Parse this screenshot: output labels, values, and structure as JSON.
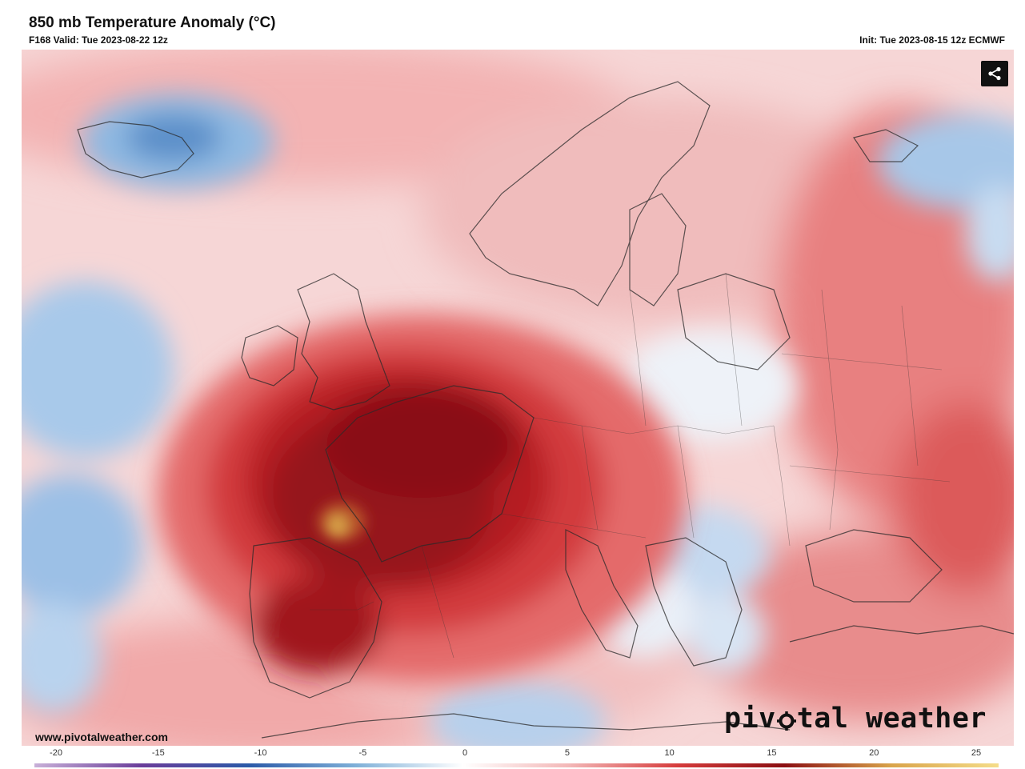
{
  "header": {
    "title": "850 mb Temperature Anomaly (°C)",
    "valid_line": "F168 Valid: Tue 2023-08-22 12z",
    "init_line": "Init: Tue 2023-08-15 12z ECMWF"
  },
  "footer": {
    "website": "www.pivotalweather.com",
    "brand_prefix": "piv",
    "brand_suffix": "tal weather"
  },
  "toolbar": {
    "share_icon": "share-icon"
  },
  "colorbar": {
    "ticks": [
      "-20",
      "-15",
      "-10",
      "-5",
      "0",
      "5",
      "10",
      "15",
      "20",
      "25"
    ],
    "stops": [
      "#c8b0d8",
      "#6a3d9a",
      "#2b5aa8",
      "#7fb0d8",
      "#ffffff",
      "#f3b6b6",
      "#d63c3c",
      "#8b0f12",
      "#d9a44a",
      "#f5dd8a"
    ]
  },
  "colors": {
    "extreme_warm": "#7a0d12",
    "warm": "#d84548",
    "mild_warm": "#f0a3a3",
    "neutral": "#f9eeee",
    "cool": "#9cc3e6"
  }
}
